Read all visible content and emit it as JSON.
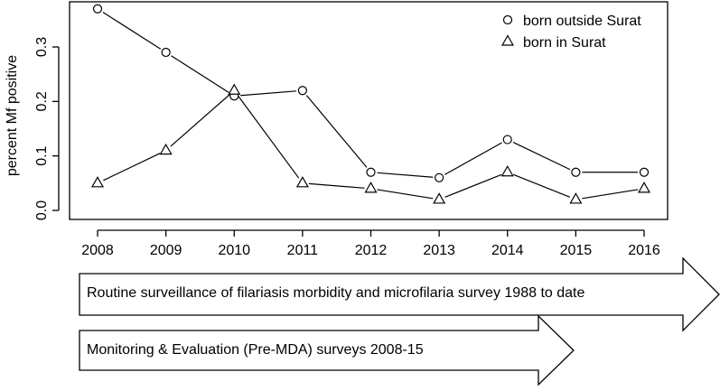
{
  "chart_data": {
    "type": "line",
    "x": [
      2008,
      2009,
      2010,
      2011,
      2012,
      2013,
      2014,
      2015,
      2016
    ],
    "xticks": [
      "2008",
      "2009",
      "2010",
      "2011",
      "2012",
      "2013",
      "2014",
      "2015",
      "2016"
    ],
    "ylabel": "percent Mf positive",
    "yticks": [
      "0.0",
      "0.1",
      "0.2",
      "0.3"
    ],
    "ylim": [
      0,
      0.37
    ],
    "legend_position": "top-right",
    "series": [
      {
        "name": "born outside Surat",
        "marker": "circle",
        "values": [
          0.37,
          0.29,
          0.21,
          0.22,
          0.07,
          0.06,
          0.13,
          0.07,
          0.07
        ]
      },
      {
        "name": "born in Surat",
        "marker": "triangle",
        "values": [
          0.05,
          0.11,
          0.22,
          0.05,
          0.04,
          0.02,
          0.07,
          0.02,
          0.04
        ]
      }
    ]
  },
  "arrows": {
    "routine": "Routine surveillance of filariasis morbidity and microfilaria survey 1988 to date",
    "monitoring": "Monitoring & Evaluation (Pre-MDA) surveys 2008-15"
  }
}
